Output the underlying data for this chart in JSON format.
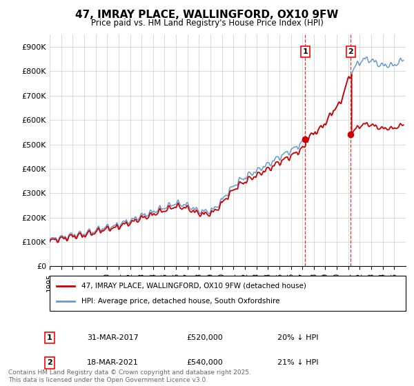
{
  "title": "47, IMRAY PLACE, WALLINGFORD, OX10 9FW",
  "subtitle": "Price paid vs. HM Land Registry's House Price Index (HPI)",
  "ylabel_ticks": [
    "£0",
    "£100K",
    "£200K",
    "£300K",
    "£400K",
    "£500K",
    "£600K",
    "£700K",
    "£800K",
    "£900K"
  ],
  "ytick_values": [
    0,
    100000,
    200000,
    300000,
    400000,
    500000,
    600000,
    700000,
    800000,
    900000
  ],
  "ylim": [
    0,
    950000
  ],
  "xlim_start": 1995.0,
  "xlim_end": 2026.0,
  "hpi_color": "#6699cc",
  "price_color": "#cc0000",
  "marker1_year": 2017.25,
  "marker1_price": 520000,
  "marker2_year": 2021.22,
  "marker2_price": 540000,
  "marker1_label": "31-MAR-2017",
  "marker1_value": "£520,000",
  "marker1_pct": "20% ↓ HPI",
  "marker2_label": "18-MAR-2021",
  "marker2_value": "£540,000",
  "marker2_pct": "21% ↓ HPI",
  "legend_line1": "47, IMRAY PLACE, WALLINGFORD, OX10 9FW (detached house)",
  "legend_line2": "HPI: Average price, detached house, South Oxfordshire",
  "footnote": "Contains HM Land Registry data © Crown copyright and database right 2025.\nThis data is licensed under the Open Government Licence v3.0.",
  "background_color": "#ffffff",
  "grid_color": "#cccccc"
}
